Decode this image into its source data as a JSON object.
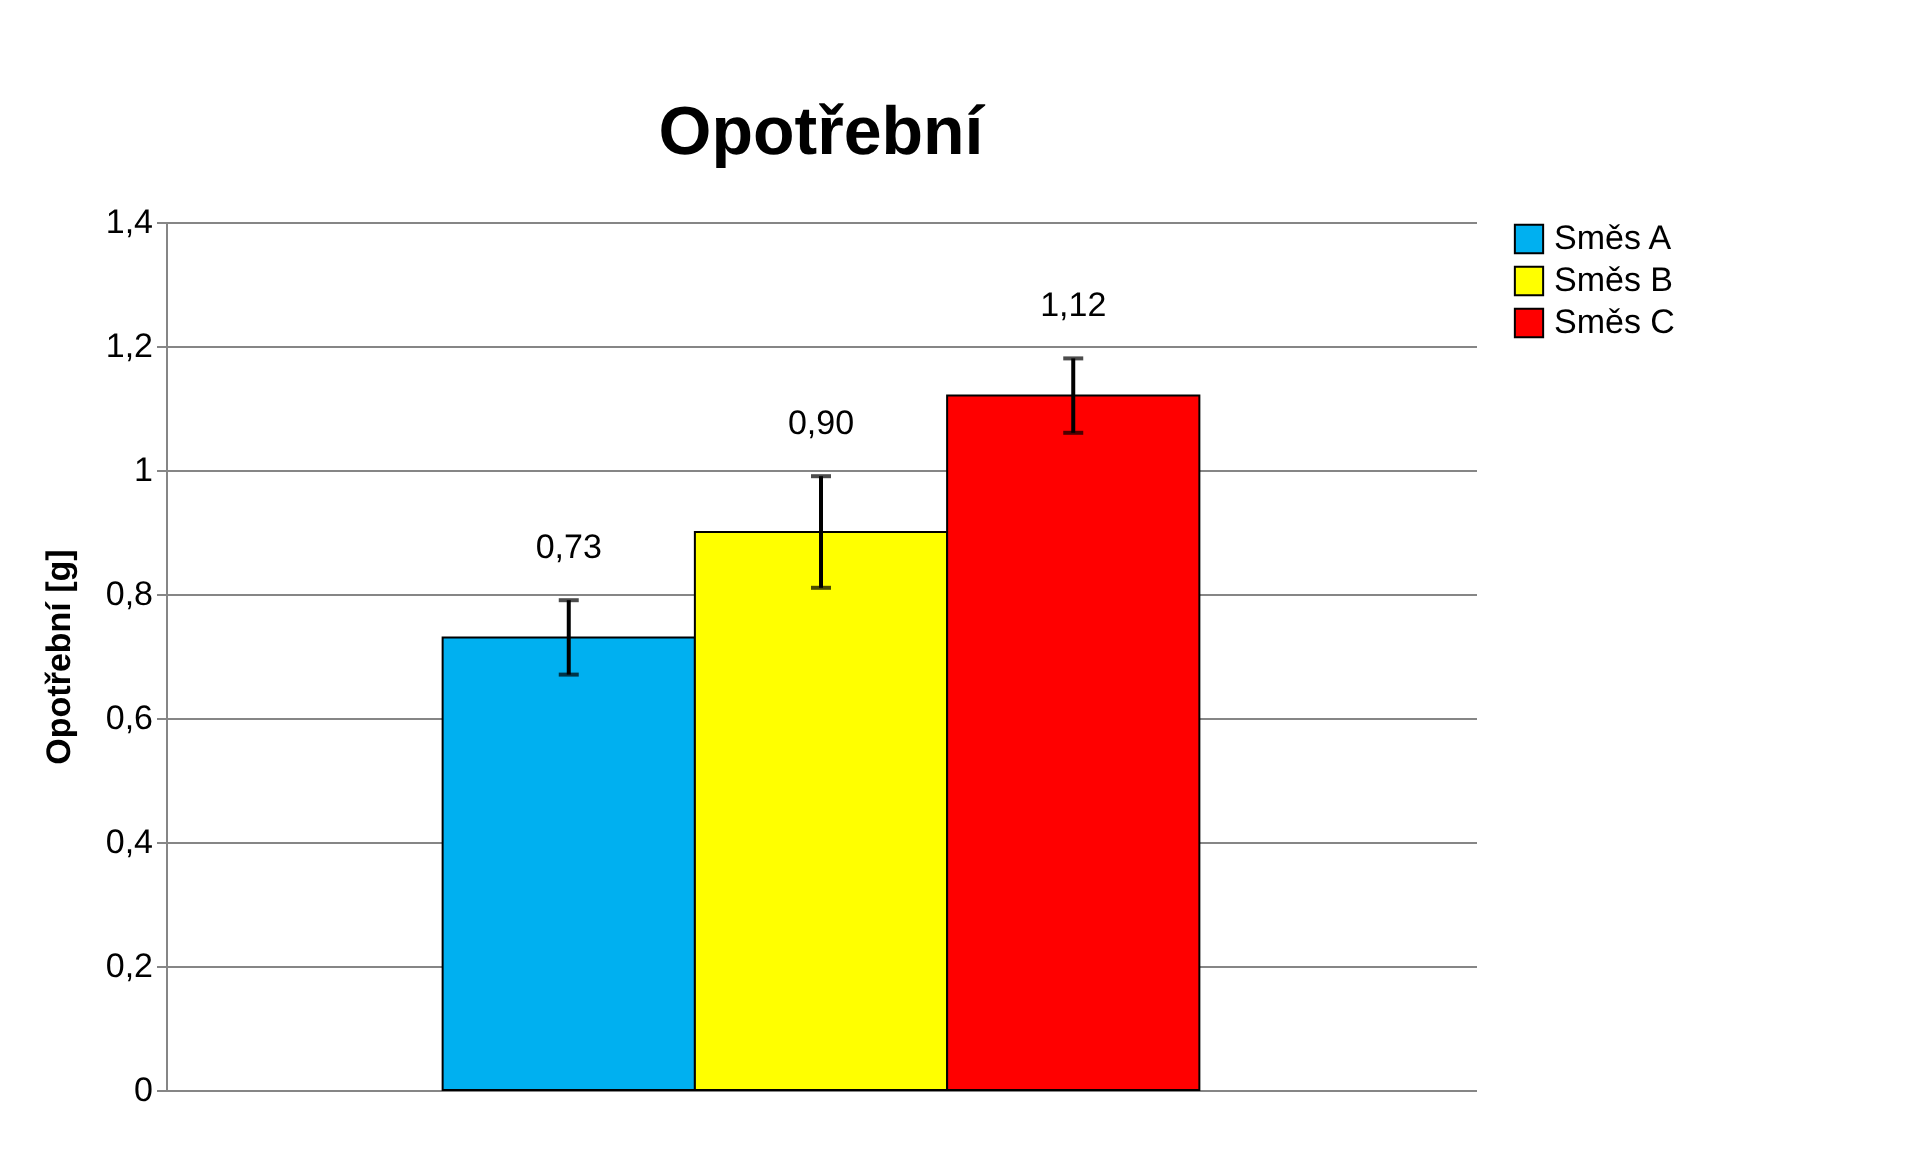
{
  "chart_data": {
    "type": "bar",
    "title": "Opotřební",
    "ylabel": "Opotřební [g]",
    "categories": [
      null
    ],
    "series": [
      {
        "name": "Směs A",
        "color": "#00b0f0",
        "values": [
          0.73
        ],
        "errors": [
          0.06
        ],
        "value_labels": [
          "0,73"
        ]
      },
      {
        "name": "Směs B",
        "color": "#ffff00",
        "values": [
          0.9
        ],
        "errors": [
          0.09
        ],
        "value_labels": [
          "0,90"
        ]
      },
      {
        "name": "Směs C",
        "color": "#ff0000",
        "values": [
          1.12
        ],
        "errors": [
          0.06
        ],
        "value_labels": [
          "1,12"
        ]
      }
    ],
    "ylim": [
      0,
      1.4
    ],
    "yticks": [
      0,
      {
        "value": 0.2,
        "label": "0,2"
      },
      {
        "value": 0.4,
        "label": "0,4"
      },
      {
        "value": 0.6,
        "label": "0,6"
      },
      {
        "value": 0.8,
        "label": "0,8"
      },
      1,
      {
        "value": 1.2,
        "label": "1,2"
      },
      {
        "value": 1.4,
        "label": "1,4"
      }
    ],
    "grid": "y",
    "legend": "right"
  }
}
